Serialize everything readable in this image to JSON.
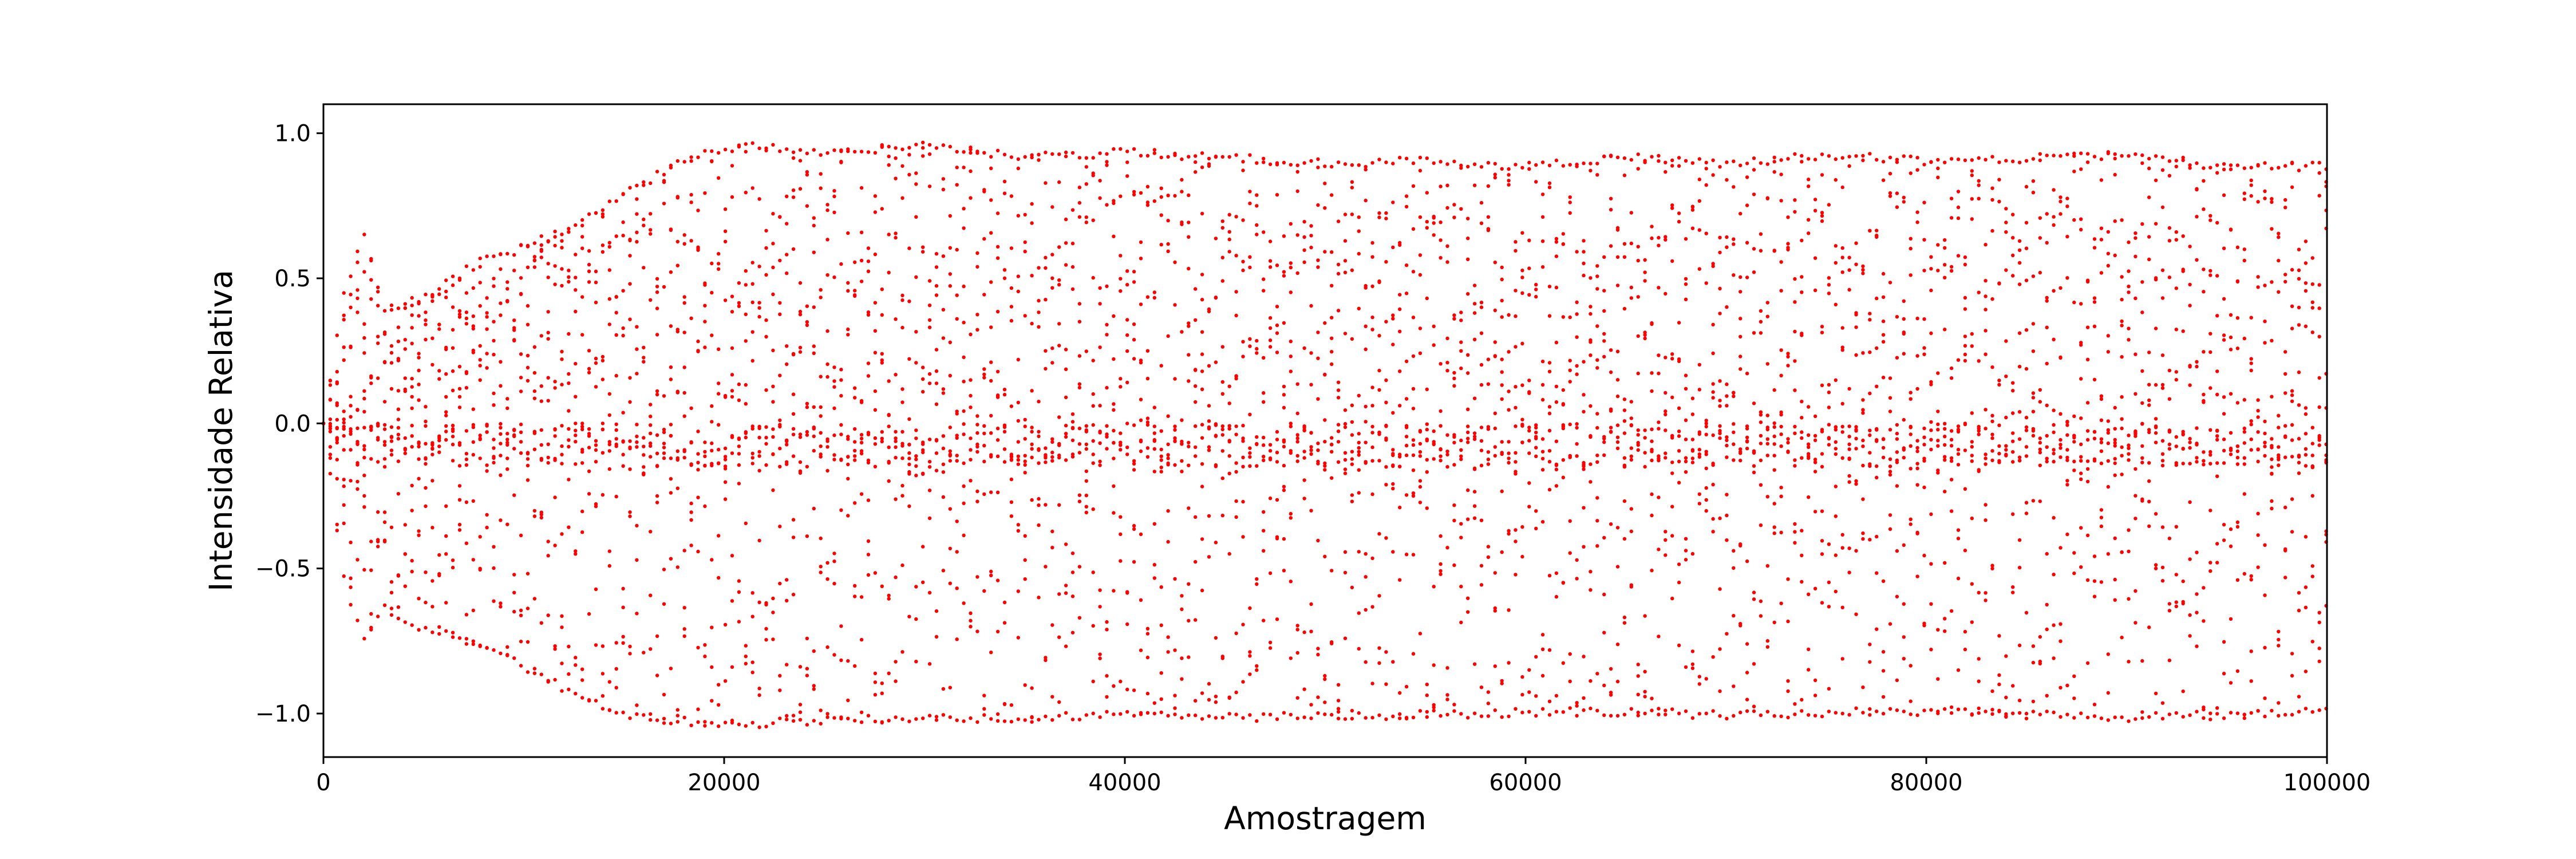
{
  "chart_data": {
    "type": "scatter",
    "title": "",
    "xlabel": "Amostragem",
    "ylabel": "Intensidade Relativa",
    "xlim": [
      0,
      100000
    ],
    "ylim": [
      -1.15,
      1.1
    ],
    "x_ticks": [
      0,
      20000,
      40000,
      60000,
      80000,
      100000
    ],
    "x_tick_labels": [
      "0",
      "20000",
      "40000",
      "60000",
      "80000",
      "100000"
    ],
    "y_ticks": [
      -1.0,
      -0.5,
      0.0,
      0.5,
      1.0
    ],
    "y_tick_labels": [
      "−1.0",
      "−0.5",
      "0.0",
      "0.5",
      "1.0"
    ],
    "grid": false,
    "legend": "none",
    "marker": "dot",
    "color": "#ff0000",
    "series": [
      {
        "x": [
          0,
          1000,
          2000,
          3000,
          5000,
          8000,
          10000,
          12000,
          15000,
          18000,
          21000,
          25000,
          30000,
          35000,
          40000,
          45000,
          50000,
          55000,
          60000,
          65000,
          70000,
          75000,
          80000,
          85000,
          90000,
          95000,
          100000
        ],
        "y_max": [
          0.0,
          0.45,
          0.67,
          0.4,
          0.45,
          0.58,
          0.62,
          0.68,
          0.8,
          0.93,
          0.97,
          0.95,
          0.97,
          0.93,
          0.95,
          0.93,
          0.91,
          0.92,
          0.9,
          0.93,
          0.91,
          0.94,
          0.92,
          0.93,
          0.94,
          0.9,
          0.9
        ],
        "y_min": [
          0.0,
          -0.55,
          -0.77,
          -0.65,
          -0.72,
          -0.78,
          -0.85,
          -0.93,
          -1.02,
          -1.04,
          -1.05,
          -1.04,
          -1.03,
          -1.03,
          -1.02,
          -1.03,
          -1.02,
          -1.02,
          -1.01,
          -1.01,
          -1.02,
          -1.01,
          -1.01,
          -1.02,
          -1.03,
          -1.02,
          -1.0
        ],
        "core_upper": [
          0.0,
          0.1,
          0.15,
          0.18,
          0.22,
          0.27,
          0.3,
          0.33,
          0.36,
          0.37,
          0.38,
          0.38,
          0.37,
          0.36,
          0.36,
          0.35,
          0.34,
          0.34,
          0.34,
          0.34,
          0.33,
          0.34,
          0.34,
          0.34,
          0.34,
          0.34,
          0.34
        ],
        "core_lower": [
          0.0,
          -0.08,
          -0.1,
          -0.11,
          -0.12,
          -0.13,
          -0.14,
          -0.15,
          -0.16,
          -0.17,
          -0.17,
          -0.17,
          -0.16,
          -0.17,
          -0.17,
          -0.17,
          -0.16,
          -0.17,
          -0.17,
          -0.17,
          -0.17,
          -0.17,
          -0.17,
          -0.17,
          -0.17,
          -0.17,
          -0.17
        ],
        "dense_band": [
          -0.15,
          0.0
        ]
      }
    ]
  }
}
